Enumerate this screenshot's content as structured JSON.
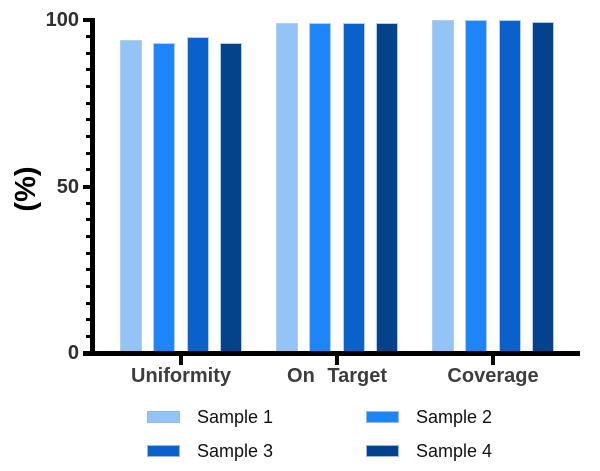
{
  "chart_data": {
    "type": "bar",
    "title": "",
    "xlabel": "",
    "ylabel": "(%)",
    "categories": [
      "Uniformity",
      "On Target",
      "Coverage"
    ],
    "series": [
      {
        "name": "Sample 1",
        "color": "#92c4f8",
        "values": [
          94,
          99,
          100
        ]
      },
      {
        "name": "Sample 2",
        "color": "#1e86fb",
        "values": [
          93,
          99,
          100
        ]
      },
      {
        "name": "Sample 3",
        "color": "#0a61c9",
        "values": [
          95,
          99,
          100
        ]
      },
      {
        "name": "Sample 4",
        "color": "#05428c",
        "values": [
          93,
          99,
          99.5
        ]
      }
    ],
    "yaxis": {
      "min": 0,
      "max": 100,
      "major_ticks": [
        0,
        50,
        100
      ],
      "minor_tick_step": 5
    },
    "grid": false,
    "legend_position": "bottom",
    "bar_border_color": "#b6cde9",
    "axis_color": "#000000",
    "tick_label_color": "#303030",
    "category_label_color": "#3d3d3d"
  }
}
